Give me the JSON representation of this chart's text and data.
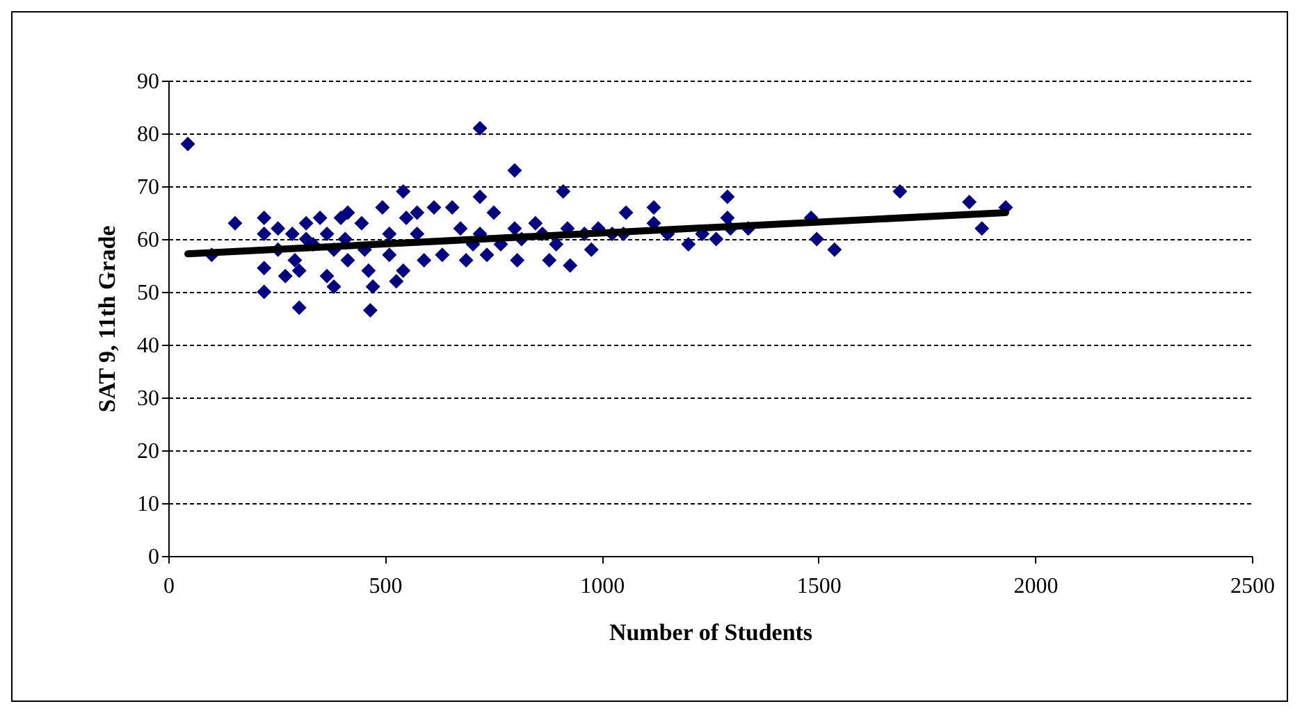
{
  "chart_data": {
    "type": "scatter",
    "xlabel": "Number of Students",
    "ylabel": "SAT 9, 11th Grade",
    "xlim": [
      0,
      2500
    ],
    "xticks": [
      0,
      500,
      1000,
      1500,
      2000,
      2500
    ],
    "ylim": [
      0,
      90
    ],
    "yticks": [
      0,
      10,
      20,
      30,
      40,
      50,
      60,
      70,
      80,
      90
    ],
    "grid": "y",
    "series": [
      {
        "color": "#000080",
        "marker": "diamond",
        "x": [
          45,
          100,
          154,
          221,
          221,
          221,
          221,
          253,
          253,
          270,
          286,
          292,
          302,
          302,
          318,
          318,
          334,
          350,
          366,
          366,
          382,
          382,
          398,
          408,
          414,
          414,
          446,
          453,
          462,
          472,
          466,
          494,
          510,
          510,
          526,
          542,
          549,
          542,
          574,
          574,
          590,
          613,
          632,
          655,
          674,
          687,
          703,
          719,
          719,
          719,
          735,
          751,
          767,
          799,
          799,
          805,
          815,
          847,
          863,
          879,
          895,
          911,
          921,
          927,
          960,
          976,
          992,
          1024,
          1056,
          1050,
          1120,
          1120,
          1152,
          1200,
          1232,
          1264,
          1290,
          1290,
          1297,
          1338,
          1483,
          1496,
          1537,
          1688,
          1848,
          1877,
          1932
        ],
        "values": [
          78,
          57,
          63,
          64,
          61,
          54.5,
          50,
          62,
          58,
          53,
          61,
          56,
          54,
          47,
          60,
          63,
          59,
          64,
          53,
          61,
          51,
          58,
          64,
          60,
          56,
          65,
          63,
          58,
          54,
          51,
          46.5,
          66,
          61,
          57,
          52,
          69,
          64,
          54,
          61,
          65,
          56,
          66,
          57,
          66,
          62,
          56,
          59,
          81,
          68,
          61,
          57,
          65,
          59,
          73,
          62,
          56,
          60,
          63,
          61,
          56,
          59,
          69,
          62,
          55,
          61,
          58,
          62,
          61,
          65,
          61,
          66,
          63,
          61,
          59,
          61,
          60,
          68,
          64,
          62,
          62,
          64,
          60,
          58,
          69,
          67,
          62,
          66
        ]
      },
      {
        "type": "line",
        "marker": "none",
        "color": "#000000",
        "x": [
          45,
          1932
        ],
        "values": [
          57.2,
          65
        ]
      }
    ]
  }
}
